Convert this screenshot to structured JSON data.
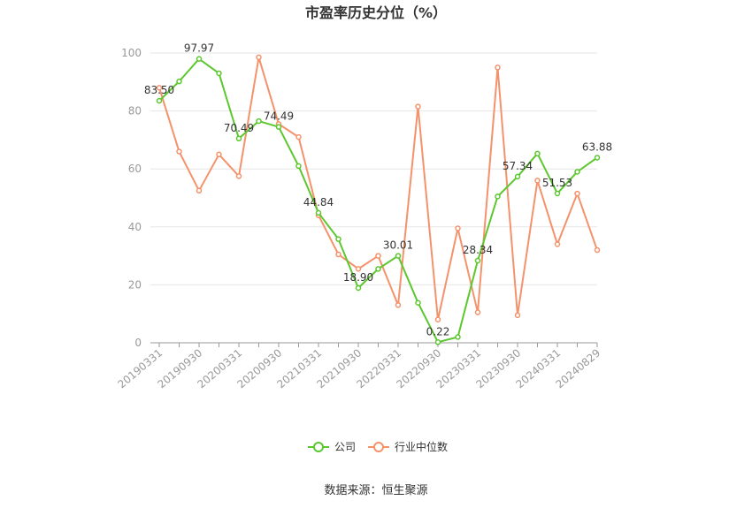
{
  "chart_data": {
    "type": "line",
    "title": "市盈率历史分位（%）",
    "xlabel": "",
    "ylabel": "",
    "ylim": [
      0,
      100
    ],
    "yticks": [
      0,
      20,
      40,
      60,
      80,
      100
    ],
    "grid": true,
    "legend_position": "bottom",
    "x": [
      "20190331",
      "20190630",
      "20190930",
      "20191231",
      "20200331",
      "20200630",
      "20200930",
      "20201231",
      "20210331",
      "20210630",
      "20210930",
      "20211231",
      "20220331",
      "20220630",
      "20220930",
      "20221231",
      "20230331",
      "20230630",
      "20230930",
      "20231231",
      "20240331",
      "20240630",
      "20240829"
    ],
    "x_tick_labels": [
      "20190331",
      "20190930",
      "20200331",
      "20200930",
      "20210331",
      "20210930",
      "20220331",
      "20220930",
      "20230331",
      "20230930",
      "20240331",
      "20240829"
    ],
    "series": [
      {
        "name": "公司",
        "color": "#5cc72e",
        "values": [
          83.5,
          90.2,
          97.97,
          93.0,
          70.49,
          76.5,
          74.49,
          61.0,
          44.84,
          35.8,
          18.9,
          25.5,
          30.01,
          13.8,
          0.22,
          2.0,
          28.34,
          50.5,
          57.34,
          65.3,
          51.53,
          59.0,
          63.88
        ],
        "labels": {
          "0": "83.50",
          "2": "97.97",
          "4": "70.49",
          "6": "74.49",
          "8": "44.84",
          "10": "18.90",
          "12": "30.01",
          "14": "0.22",
          "16": "28.34",
          "18": "57.34",
          "20": "51.53",
          "22": "63.88"
        }
      },
      {
        "name": "行业中位数",
        "color": "#f4926b",
        "values": [
          88.0,
          66.0,
          52.5,
          65.0,
          57.5,
          98.5,
          75.5,
          71.0,
          44.0,
          30.5,
          25.5,
          30.0,
          13.0,
          81.5,
          8.0,
          39.5,
          10.5,
          95.0,
          9.5,
          56.0,
          34.0,
          51.5,
          32.0
        ]
      }
    ]
  },
  "source_text": "数据来源：恒生聚源"
}
